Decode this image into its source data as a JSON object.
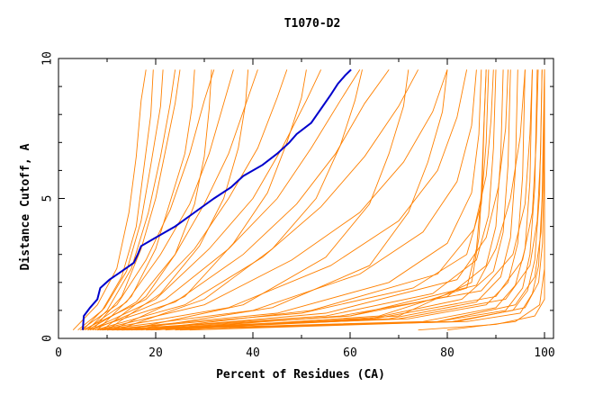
{
  "chart_data": {
    "type": "line",
    "title": "T1070-D2",
    "xlabel": "Percent of Residues (CA)",
    "ylabel": "Distance Cutoff, A",
    "xlim": [
      0,
      100
    ],
    "ylim": [
      0,
      10
    ],
    "x_ticks": [
      0,
      20,
      40,
      60,
      80,
      100
    ],
    "y_ticks": [
      0,
      5,
      10
    ],
    "x_tick_labels": [
      "0",
      "20",
      "40",
      "60",
      "80",
      "100"
    ],
    "y_tick_labels": [
      "0",
      "5",
      "10"
    ],
    "grid": false,
    "legend": "none",
    "colors": {
      "highlight": "#0000cc",
      "background_series": "#ff8000"
    },
    "highlight_series": {
      "x": [
        5.0,
        5.2,
        6.5,
        8.0,
        8.6,
        10.5,
        13.0,
        15.5,
        16.3,
        17.0,
        20.0,
        24.0,
        28.0,
        32.0,
        35.5,
        38.0,
        42.0,
        45.0,
        47.5,
        49.0,
        52.0,
        54.0,
        56.0,
        57.5,
        59.0,
        60.2
      ],
      "y": [
        0.3,
        0.8,
        1.1,
        1.4,
        1.8,
        2.1,
        2.4,
        2.7,
        3.0,
        3.3,
        3.6,
        4.0,
        4.5,
        5.0,
        5.4,
        5.8,
        6.2,
        6.6,
        7.0,
        7.3,
        7.7,
        8.2,
        8.7,
        9.1,
        9.4,
        9.6
      ]
    },
    "background_series": [
      {
        "x": [
          3.0,
          8.0,
          12.0,
          14.5,
          16.0,
          17.0,
          18.0
        ],
        "y": [
          0.3,
          1.2,
          2.5,
          4.5,
          6.5,
          8.5,
          9.6
        ]
      },
      {
        "x": [
          4.0,
          9.0,
          13.0,
          16.0,
          17.5,
          19.0,
          19.5
        ],
        "y": [
          0.3,
          1.0,
          2.2,
          4.0,
          6.0,
          8.0,
          9.6
        ]
      },
      {
        "x": [
          5.0,
          9.5,
          14.0,
          17.0,
          19.0,
          21.0,
          21.5
        ],
        "y": [
          0.3,
          1.1,
          2.4,
          4.2,
          6.2,
          8.3,
          9.6
        ]
      },
      {
        "x": [
          6.0,
          10.0,
          15.0,
          18.5,
          21.0,
          23.0,
          24.0
        ],
        "y": [
          0.3,
          1.0,
          2.5,
          4.5,
          6.5,
          8.4,
          9.6
        ]
      },
      {
        "x": [
          4.5,
          12.0,
          18.0,
          23.0,
          27.0,
          30.0,
          32.0
        ],
        "y": [
          0.3,
          1.2,
          2.8,
          4.6,
          6.6,
          8.5,
          9.6
        ]
      },
      {
        "x": [
          5.5,
          14.0,
          21.0,
          27.0,
          31.0,
          34.0,
          36.0
        ],
        "y": [
          0.3,
          1.3,
          3.0,
          4.8,
          6.6,
          8.4,
          9.6
        ]
      },
      {
        "x": [
          6.0,
          16.0,
          24.0,
          30.0,
          35.0,
          39.0,
          41.0
        ],
        "y": [
          0.3,
          1.3,
          3.0,
          4.8,
          6.6,
          8.6,
          9.6
        ]
      },
      {
        "x": [
          5.0,
          18.0,
          28.0,
          35.0,
          41.0,
          45.0,
          47.0
        ],
        "y": [
          0.3,
          1.4,
          3.2,
          5.0,
          6.8,
          8.6,
          9.6
        ]
      },
      {
        "x": [
          6.5,
          20.0,
          31.0,
          40.0,
          46.0,
          51.0,
          54.0
        ],
        "y": [
          0.3,
          1.4,
          3.2,
          5.0,
          6.8,
          8.5,
          9.6
        ]
      },
      {
        "x": [
          7.0,
          22.0,
          35.0,
          45.0,
          52.0,
          58.0,
          62.0
        ],
        "y": [
          0.3,
          1.4,
          3.2,
          5.0,
          6.8,
          8.5,
          9.6
        ]
      },
      {
        "x": [
          6.0,
          24.0,
          38.0,
          49.0,
          57.0,
          63.0,
          68.0
        ],
        "y": [
          0.3,
          1.3,
          3.0,
          4.8,
          6.6,
          8.4,
          9.6
        ]
      },
      {
        "x": [
          7.5,
          26.0,
          42.0,
          54.0,
          63.0,
          70.0,
          74.0
        ],
        "y": [
          0.3,
          1.2,
          2.9,
          4.7,
          6.5,
          8.3,
          9.6
        ]
      },
      {
        "x": [
          8.0,
          30.0,
          48.0,
          62.0,
          71.0,
          77.0,
          80.0
        ],
        "y": [
          0.3,
          1.2,
          2.8,
          4.5,
          6.3,
          8.1,
          9.6
        ]
      },
      {
        "x": [
          8.0,
          35.0,
          56.0,
          70.0,
          78.0,
          82.0,
          84.0
        ],
        "y": [
          0.3,
          1.1,
          2.6,
          4.2,
          6.0,
          7.9,
          9.6
        ]
      },
      {
        "x": [
          8.5,
          40.0,
          62.0,
          75.0,
          82.0,
          85.0,
          86.0
        ],
        "y": [
          0.3,
          1.0,
          2.3,
          3.8,
          5.6,
          7.6,
          9.6
        ]
      },
      {
        "x": [
          9.0,
          45.0,
          68.0,
          80.0,
          85.0,
          86.5,
          87.0
        ],
        "y": [
          0.3,
          0.9,
          2.0,
          3.4,
          5.2,
          7.3,
          9.6
        ]
      },
      {
        "x": [
          9.0,
          50.0,
          73.0,
          84.0,
          87.0,
          88.0,
          88.5
        ],
        "y": [
          0.3,
          0.9,
          1.8,
          3.0,
          4.8,
          7.0,
          9.6
        ]
      },
      {
        "x": [
          10.0,
          55.0,
          77.0,
          86.0,
          88.5,
          89.5,
          90.0
        ],
        "y": [
          0.3,
          0.8,
          1.6,
          2.8,
          4.4,
          6.8,
          9.6
        ]
      },
      {
        "x": [
          10.0,
          60.0,
          80.0,
          88.0,
          90.0,
          91.0,
          91.5
        ],
        "y": [
          0.3,
          0.8,
          1.5,
          2.6,
          4.0,
          6.5,
          9.6
        ]
      },
      {
        "x": [
          11.0,
          64.0,
          83.0,
          89.5,
          91.5,
          92.5,
          93.0
        ],
        "y": [
          0.3,
          0.7,
          1.4,
          2.4,
          3.8,
          6.2,
          9.6
        ]
      },
      {
        "x": [
          11.0,
          68.0,
          86.0,
          91.0,
          93.0,
          94.0,
          94.5
        ],
        "y": [
          0.3,
          0.7,
          1.3,
          2.2,
          3.6,
          6.0,
          9.6
        ]
      },
      {
        "x": [
          12.0,
          72.0,
          88.0,
          92.5,
          94.5,
          95.5,
          96.0
        ],
        "y": [
          0.3,
          0.7,
          1.2,
          2.0,
          3.4,
          5.8,
          9.6
        ]
      },
      {
        "x": [
          12.0,
          75.0,
          90.0,
          94.0,
          96.0,
          97.0,
          97.5
        ],
        "y": [
          0.3,
          0.6,
          1.1,
          1.9,
          3.2,
          5.6,
          9.6
        ]
      },
      {
        "x": [
          13.0,
          78.0,
          92.0,
          95.5,
          97.0,
          98.0,
          98.5
        ],
        "y": [
          0.3,
          0.6,
          1.0,
          1.8,
          3.0,
          5.4,
          9.6
        ]
      },
      {
        "x": [
          13.0,
          81.0,
          93.5,
          96.5,
          98.0,
          99.0,
          99.5
        ],
        "y": [
          0.3,
          0.6,
          1.0,
          1.7,
          2.8,
          5.2,
          9.6
        ]
      },
      {
        "x": [
          14.0,
          84.0,
          95.0,
          97.5,
          98.8,
          99.5,
          100.0
        ],
        "y": [
          0.3,
          0.6,
          0.9,
          1.6,
          2.6,
          5.0,
          9.6
        ]
      },
      {
        "x": [
          15.0,
          60.0,
          86.0,
          90.0,
          93.0,
          95.0,
          96.0
        ],
        "y": [
          0.3,
          0.8,
          1.9,
          3.2,
          5.0,
          7.2,
          9.6
        ]
      },
      {
        "x": [
          16.0,
          55.0,
          82.0,
          88.0,
          90.5,
          92.0,
          92.5
        ],
        "y": [
          0.3,
          0.9,
          2.1,
          3.6,
          5.4,
          7.5,
          9.6
        ]
      },
      {
        "x": [
          17.0,
          52.0,
          78.0,
          85.5,
          88.0,
          89.0,
          89.5
        ],
        "y": [
          0.3,
          1.0,
          2.3,
          3.9,
          5.8,
          7.8,
          9.6
        ]
      },
      {
        "x": [
          18.0,
          70.0,
          92.0,
          97.0,
          98.5,
          99.2,
          99.5
        ],
        "y": [
          0.3,
          0.7,
          1.4,
          2.6,
          4.2,
          6.6,
          9.6
        ]
      },
      {
        "x": [
          19.0,
          65.0,
          90.0,
          95.5,
          97.5,
          98.3,
          98.7
        ],
        "y": [
          0.3,
          0.7,
          1.5,
          2.8,
          4.5,
          7.0,
          9.6
        ]
      },
      {
        "x": [
          20.0,
          58.0,
          87.0,
          93.5,
          96.0,
          97.0,
          97.5
        ],
        "y": [
          0.3,
          0.8,
          1.7,
          3.0,
          4.8,
          7.3,
          9.6
        ]
      },
      {
        "x": [
          22.0,
          66.0,
          84.0,
          86.0,
          87.0,
          87.5,
          88.0
        ],
        "y": [
          0.3,
          0.8,
          1.8,
          3.2,
          5.2,
          7.5,
          9.6
        ]
      },
      {
        "x": [
          24.0,
          70.0,
          85.0,
          86.5,
          87.2,
          87.6,
          88.0
        ],
        "y": [
          0.3,
          0.8,
          2.0,
          3.6,
          5.6,
          7.8,
          9.6
        ]
      },
      {
        "x": [
          25.0,
          78.0,
          94.0,
          98.0,
          99.3,
          99.8,
          100.0
        ],
        "y": [
          0.3,
          0.6,
          1.2,
          2.2,
          3.8,
          6.4,
          9.6
        ]
      },
      {
        "x": [
          27.0,
          82.0,
          96.0,
          98.8,
          99.6,
          99.9,
          100.0
        ],
        "y": [
          0.3,
          0.6,
          1.1,
          2.0,
          3.4,
          6.0,
          9.6
        ]
      },
      {
        "x": [
          74.0,
          90.0,
          98.0,
          100.0,
          100.0,
          100.0
        ],
        "y": [
          0.3,
          0.5,
          0.8,
          1.4,
          3.0,
          9.6
        ]
      },
      {
        "x": [
          80.0,
          94.0,
          99.0,
          100.0,
          100.0
        ],
        "y": [
          0.3,
          0.6,
          1.2,
          2.5,
          9.6
        ]
      },
      {
        "x": [
          9.0,
          18.0,
          24.0,
          28.0,
          30.0,
          31.0,
          31.5
        ],
        "y": [
          0.3,
          1.5,
          3.0,
          4.8,
          6.5,
          8.2,
          9.6
        ]
      },
      {
        "x": [
          10.0,
          21.0,
          29.0,
          34.0,
          37.0,
          38.5,
          39.0
        ],
        "y": [
          0.3,
          1.6,
          3.3,
          5.0,
          6.8,
          8.4,
          9.6
        ]
      },
      {
        "x": [
          11.0,
          26.0,
          36.0,
          43.0,
          47.0,
          50.0,
          51.0
        ],
        "y": [
          0.3,
          1.5,
          3.4,
          5.2,
          7.0,
          8.6,
          9.6
        ]
      },
      {
        "x": [
          12.0,
          30.0,
          44.0,
          53.0,
          58.0,
          61.0,
          62.5
        ],
        "y": [
          0.3,
          1.4,
          3.2,
          5.0,
          6.9,
          8.5,
          9.6
        ]
      },
      {
        "x": [
          14.0,
          38.0,
          55.0,
          64.0,
          68.0,
          71.0,
          72.0
        ],
        "y": [
          0.3,
          1.2,
          2.9,
          4.8,
          6.6,
          8.3,
          9.6
        ]
      },
      {
        "x": [
          15.0,
          44.0,
          64.0,
          72.0,
          76.0,
          79.0,
          80.0
        ],
        "y": [
          0.3,
          1.1,
          2.6,
          4.5,
          6.3,
          8.1,
          9.6
        ]
      },
      {
        "x": [
          7.0,
          13.0,
          17.0,
          20.0,
          22.0,
          24.0,
          25.0
        ],
        "y": [
          0.3,
          1.5,
          3.2,
          5.0,
          6.7,
          8.4,
          9.6
        ]
      },
      {
        "x": [
          8.0,
          15.0,
          20.0,
          23.0,
          26.0,
          27.5,
          28.0
        ],
        "y": [
          0.3,
          1.5,
          3.2,
          4.9,
          6.6,
          8.3,
          9.6
        ]
      }
    ]
  }
}
